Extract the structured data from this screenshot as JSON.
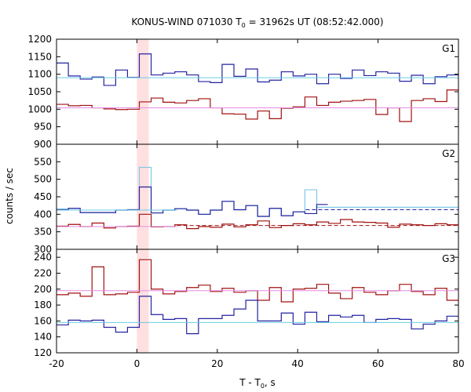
{
  "chart_data": {
    "type": "line",
    "title": {
      "main": "KONUS-WIND 071030 T",
      "sub": "0",
      "rest": " = 31962s UT (08:52:42.000)"
    },
    "xlabel": {
      "main": "T - T",
      "sub": "0",
      "rest": ", s"
    },
    "ylabel": "counts / sec",
    "xlim": [
      -20,
      80
    ],
    "xticks": [
      -20,
      0,
      20,
      40,
      60,
      80
    ],
    "highlight": {
      "x0": 0,
      "x1": 2.944,
      "color": "#ffe0e0"
    },
    "colors": {
      "blue": "#2323a0",
      "red": "#a01010",
      "cyan": "#6ccde6",
      "pink": "#e68ce6",
      "light_blue": "#80c8e8"
    },
    "panels": [
      {
        "name": "G1",
        "ylim": [
          900,
          1200
        ],
        "yticks": [
          900,
          950,
          1000,
          1050,
          1100,
          1150,
          1200
        ],
        "step_x": [
          -20,
          -17.05,
          -14.11,
          -11.17,
          -8.22,
          -5.28,
          -2.34,
          0.6,
          3.54,
          6.49,
          9.43,
          12.37,
          15.32,
          18.26,
          21.2,
          24.14,
          27.09,
          30.03,
          32.97,
          35.92,
          38.86,
          41.8,
          44.74,
          47.69,
          50.63,
          53.57,
          56.51,
          59.46,
          62.4,
          65.34,
          68.29,
          71.23,
          74.17,
          77.12,
          80
        ],
        "series": [
          {
            "color": "blue",
            "values": [
              1132,
              1095,
              1086,
              1092,
              1068,
              1112,
              1091,
              1158,
              1098,
              1103,
              1107,
              1098,
              1079,
              1076,
              1128,
              1094,
              1115,
              1078,
              1083,
              1107,
              1095,
              1100,
              1073,
              1100,
              1088,
              1112,
              1096,
              1107,
              1103,
              1080,
              1097,
              1073,
              1093,
              1098
            ]
          },
          {
            "color": "red",
            "values": [
              1014,
              1010,
              1011,
              1004,
              1001,
              999,
              1000,
              1021,
              1032,
              1020,
              1018,
              1025,
              1030,
              1004,
              987,
              986,
              972,
              995,
              973,
              1003,
              1007,
              1035,
              1011,
              1020,
              1023,
              1025,
              1028,
              985,
              1004,
              965,
              1025,
              1030,
              1022,
              1055
            ]
          },
          {
            "color": "cyan",
            "constant": 1090
          },
          {
            "color": "pink",
            "constant": 1004
          }
        ]
      },
      {
        "name": "G2",
        "ylim": [
          300,
          600
        ],
        "yticks": [
          300,
          350,
          400,
          450,
          500,
          550
        ],
        "step_x": [
          -20,
          -17.05,
          -14.11,
          -11.17,
          -8.22,
          -5.28,
          -2.34,
          0.6,
          3.54,
          6.49,
          9.43,
          12.37,
          15.32,
          18.26,
          21.2,
          24.14,
          27.09,
          30.03,
          32.97,
          35.92,
          38.86,
          41.8,
          44.74,
          47.69,
          50.63,
          53.57,
          56.51,
          59.46,
          62.4,
          65.34,
          68.29,
          71.23,
          74.17,
          77.12,
          80
        ],
        "series": [
          {
            "color": "light_blue",
            "values": [
              415,
              417,
              405,
              405,
              405,
              412,
              413,
              534,
              404,
              412,
              416,
              412,
              400,
              412,
              437,
              413,
              425,
              394,
              417,
              396,
              407,
              470,
              420,
              420,
              420,
              420,
              420,
              420,
              420,
              420,
              420,
              420,
              420,
              420
            ]
          },
          {
            "color": "blue",
            "values": [
              413,
              417,
              405,
              405,
              405,
              412,
              413,
              478,
              404,
              412,
              416,
              412,
              400,
              412,
              437,
              413,
              425,
              394,
              417,
              396,
              407,
              402,
              428,
              420,
              414,
              404,
              419,
              405,
              435,
              410,
              408,
              410,
              422,
              439
            ],
            "until": 47.5
          },
          {
            "color": "red",
            "values": [
              366,
              371,
              365,
              375,
              361,
              365,
              366,
              400,
              364,
              365,
              370,
              359,
              365,
              363,
              372,
              364,
              370,
              381,
              362,
              368,
              373,
              370,
              378,
              374,
              385,
              378,
              377,
              375,
              363,
              372,
              370,
              368,
              373,
              370
            ]
          },
          {
            "color": "blue",
            "constant": 413,
            "dashed": true,
            "from": 42,
            "to": 80
          },
          {
            "color": "red",
            "constant": 368,
            "dashed": true,
            "from": 10,
            "to": 80
          },
          {
            "color": "cyan",
            "constant": 412,
            "to": 10
          },
          {
            "color": "pink",
            "constant": 365,
            "to": 10
          }
        ]
      },
      {
        "name": "G3",
        "ylim": [
          120,
          250
        ],
        "yticks": [
          120,
          140,
          160,
          180,
          200,
          220,
          240
        ],
        "step_x": [
          -20,
          -17.05,
          -14.11,
          -11.17,
          -8.22,
          -5.28,
          -2.34,
          0.6,
          3.54,
          6.49,
          9.43,
          12.37,
          15.32,
          18.26,
          21.2,
          24.14,
          27.09,
          30.03,
          32.97,
          35.92,
          38.86,
          41.8,
          44.74,
          47.69,
          50.63,
          53.57,
          56.51,
          59.46,
          62.4,
          65.34,
          68.29,
          71.23,
          74.17,
          77.12,
          80
        ],
        "series": [
          {
            "color": "red",
            "values": [
              193,
              195,
              191,
              228,
              193,
              194,
              196,
              237,
              200,
              194,
              197,
              202,
              205,
              197,
              201,
              196,
              198,
              186,
              202,
              184,
              200,
              201,
              206,
              195,
              188,
              202,
              196,
              193,
              198,
              206,
              197,
              193,
              201,
              186
            ]
          },
          {
            "color": "blue",
            "values": [
              155,
              161,
              160,
              161,
              152,
              146,
              152,
              191,
              168,
              162,
              163,
              144,
              163,
              163,
              167,
              175,
              186,
              160,
              160,
              170,
              156,
              171,
              159,
              167,
              165,
              167,
              158,
              162,
              163,
              162,
              150,
              156,
              160,
              166
            ]
          },
          {
            "color": "pink",
            "constant": 198
          },
          {
            "color": "cyan",
            "constant": 158
          }
        ]
      }
    ]
  }
}
